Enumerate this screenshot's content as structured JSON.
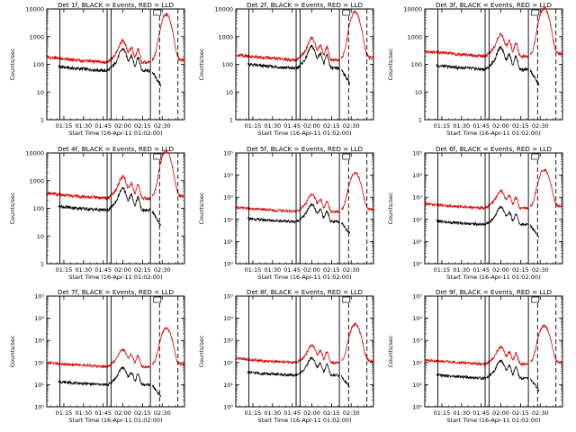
{
  "figure": {
    "background": "#ffffff"
  },
  "colors": {
    "events": "#000000",
    "lld": "#e00000",
    "axes": "#000000"
  },
  "ylabel": "Counts/sec",
  "xlabel": "Start Time (16-Apr-11 01:02:00)",
  "x_tick_labels": [
    "01:15",
    "01:30",
    "01:45",
    "02:00",
    "02:15",
    "02:30"
  ],
  "x_tick_minutes": [
    13,
    28,
    43,
    58,
    73,
    88
  ],
  "x_range_minutes": [
    0,
    105
  ],
  "markers_minutes": {
    "solid": [
      10,
      46,
      49,
      79
    ],
    "dashed": [
      86,
      100
    ]
  },
  "ytick_sets": {
    "linear": [
      "1",
      "10",
      "100",
      "1000",
      "10000"
    ],
    "exp": [
      "10⁰",
      "10¹",
      "10²",
      "10³",
      "10⁴",
      "10⁵"
    ]
  },
  "chart_data": [
    {
      "type": "line",
      "title": "Det 1f, BLACK = Events, RED = LLD",
      "detector": 1,
      "yscale": "log",
      "ylim": [
        1,
        10000
      ],
      "ytick_style": "linear",
      "series": [
        {
          "name": "BLACK = Events",
          "color": "#000000",
          "base": 90
        },
        {
          "name": "RED = LLD",
          "color": "#e00000",
          "base": 180
        }
      ]
    },
    {
      "type": "line",
      "title": "Det 2f, BLACK = Events, RED = LLD",
      "detector": 2,
      "yscale": "log",
      "ylim": [
        1,
        10000
      ],
      "ytick_style": "linear",
      "series": [
        {
          "name": "BLACK = Events",
          "color": "#000000",
          "base": 110
        },
        {
          "name": "RED = LLD",
          "color": "#e00000",
          "base": 220
        }
      ]
    },
    {
      "type": "line",
      "title": "Det 3f, BLACK = Events, RED = LLD",
      "detector": 3,
      "yscale": "log",
      "ylim": [
        1,
        10000
      ],
      "ytick_style": "linear",
      "series": [
        {
          "name": "BLACK = Events",
          "color": "#000000",
          "base": 100
        },
        {
          "name": "RED = LLD",
          "color": "#e00000",
          "base": 300
        }
      ]
    },
    {
      "type": "line",
      "title": "Det 4f, BLACK = Events, RED = LLD",
      "detector": 4,
      "yscale": "log",
      "ylim": [
        1,
        10000
      ],
      "ytick_style": "linear",
      "series": [
        {
          "name": "BLACK = Events",
          "color": "#000000",
          "base": 130
        },
        {
          "name": "RED = LLD",
          "color": "#e00000",
          "base": 350
        }
      ]
    },
    {
      "type": "line",
      "title": "Det 5f, BLACK = Events, RED = LLD",
      "detector": 5,
      "yscale": "log",
      "ylim": [
        1,
        100000
      ],
      "ytick_style": "exp",
      "series": [
        {
          "name": "BLACK = Events",
          "color": "#000000",
          "base": 120
        },
        {
          "name": "RED = LLD",
          "color": "#e00000",
          "base": 350
        }
      ]
    },
    {
      "type": "line",
      "title": "Det 6f, BLACK = Events, RED = LLD",
      "detector": 6,
      "yscale": "log",
      "ylim": [
        1,
        100000
      ],
      "ytick_style": "exp",
      "series": [
        {
          "name": "BLACK = Events",
          "color": "#000000",
          "base": 90
        },
        {
          "name": "RED = LLD",
          "color": "#e00000",
          "base": 500
        }
      ]
    },
    {
      "type": "line",
      "title": "Det 7f, BLACK = Events, RED = LLD",
      "detector": 7,
      "yscale": "log",
      "ylim": [
        1,
        100000
      ],
      "ytick_style": "exp",
      "series": [
        {
          "name": "BLACK = Events",
          "color": "#000000",
          "base": 15
        },
        {
          "name": "RED = LLD",
          "color": "#e00000",
          "base": 100
        }
      ]
    },
    {
      "type": "line",
      "title": "Det 8f, BLACK = Events, RED = LLD",
      "detector": 8,
      "yscale": "log",
      "ylim": [
        1,
        100000
      ],
      "ytick_style": "exp",
      "series": [
        {
          "name": "BLACK = Events",
          "color": "#000000",
          "base": 40
        },
        {
          "name": "RED = LLD",
          "color": "#e00000",
          "base": 150
        }
      ]
    },
    {
      "type": "line",
      "title": "Det 9f, BLACK = Events, RED = LLD",
      "detector": 9,
      "yscale": "log",
      "ylim": [
        1,
        100000
      ],
      "ytick_style": "exp",
      "series": [
        {
          "name": "BLACK = Events",
          "color": "#000000",
          "base": 30
        },
        {
          "name": "RED = LLD",
          "color": "#e00000",
          "base": 130
        }
      ]
    }
  ]
}
